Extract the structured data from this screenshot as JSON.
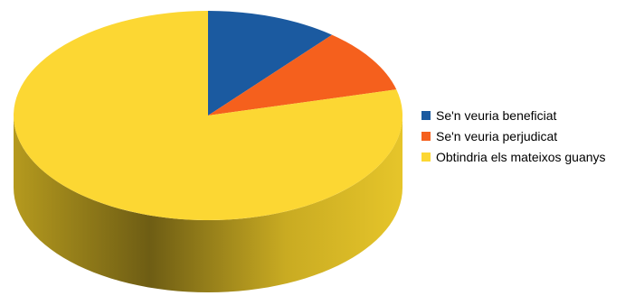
{
  "chart_data": {
    "type": "pie",
    "style": "3d",
    "title": "",
    "categories": [
      "Se'n veuria beneficiat",
      "Se'n veuria perjudicat",
      "Obtindria els mateixos guanys"
    ],
    "values": [
      11,
      10,
      79
    ],
    "colors": [
      "#1b5aa0",
      "#f5601d",
      "#fcd733"
    ],
    "side_colors": [
      "#0e3564",
      "#9a3a10",
      "#9a8218"
    ],
    "legend_position": "right"
  },
  "legend": {
    "items": [
      {
        "label": "Se'n veuria beneficiat",
        "color": "#1b5aa0"
      },
      {
        "label": "Se'n veuria perjudicat",
        "color": "#f5601d"
      },
      {
        "label": "Obtindria els mateixos guanys",
        "color": "#fcd733"
      }
    ]
  }
}
